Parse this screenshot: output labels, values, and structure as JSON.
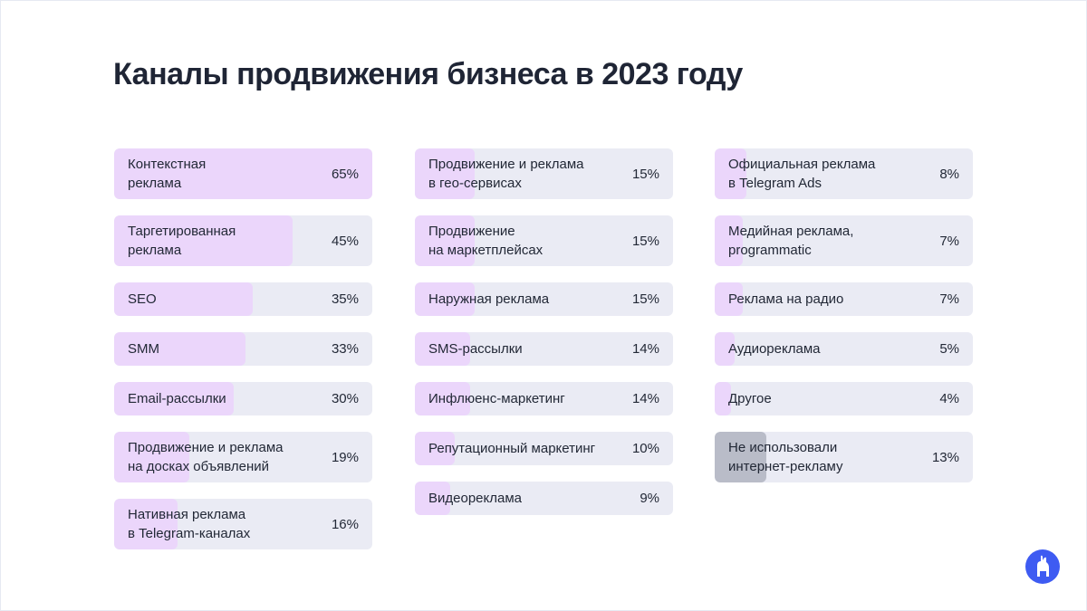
{
  "chart_data": {
    "type": "progress-bar",
    "title": "Каналы продвижения бизнеса в 2023 году",
    "categories": [
      "Контекстная\nреклама",
      "Таргетированная\nреклама",
      "SEO",
      "SMM",
      "Email-рассылки",
      "Продвижение и реклама\nна досках объявлений",
      "Нативная реклама\nв Telegram-каналах",
      "Продвижение и реклама\nв гео-сервисах",
      "Продвижение\nна маркетплейсах",
      "Наружная реклама",
      "SMS-рассылки",
      "Инфлюенс-маркетинг",
      "Репутационный маркетинг",
      "Видеореклама",
      "Официальная реклама\nв Telegram Ads",
      "Медийная реклама,\nprogrammatic",
      "Реклама на радио",
      "Аудиореклама",
      "Другое",
      "Не использовали\nинтернет-рекламу"
    ],
    "values": [
      65,
      45,
      35,
      33,
      30,
      19,
      16,
      15,
      15,
      15,
      14,
      14,
      10,
      9,
      8,
      7,
      7,
      5,
      4,
      13
    ],
    "value_labels": [
      "65%",
      "45%",
      "35%",
      "33%",
      "30%",
      "19%",
      "16%",
      "15%",
      "15%",
      "15%",
      "14%",
      "14%",
      "10%",
      "9%",
      "8%",
      "7%",
      "7%",
      "5%",
      "4%",
      "13%"
    ],
    "colors": [
      "#ebd6fb",
      "#ebd6fb",
      "#ebd6fb",
      "#ebd6fb",
      "#ebd6fb",
      "#ebd6fb",
      "#ebd6fb",
      "#ebd6fb",
      "#ebd6fb",
      "#ebd6fb",
      "#ebd6fb",
      "#ebd6fb",
      "#ebd6fb",
      "#ebd6fb",
      "#ebd6fb",
      "#ebd6fb",
      "#ebd6fb",
      "#ebd6fb",
      "#ebd6fb",
      "#b9bcc8"
    ]
  }
}
